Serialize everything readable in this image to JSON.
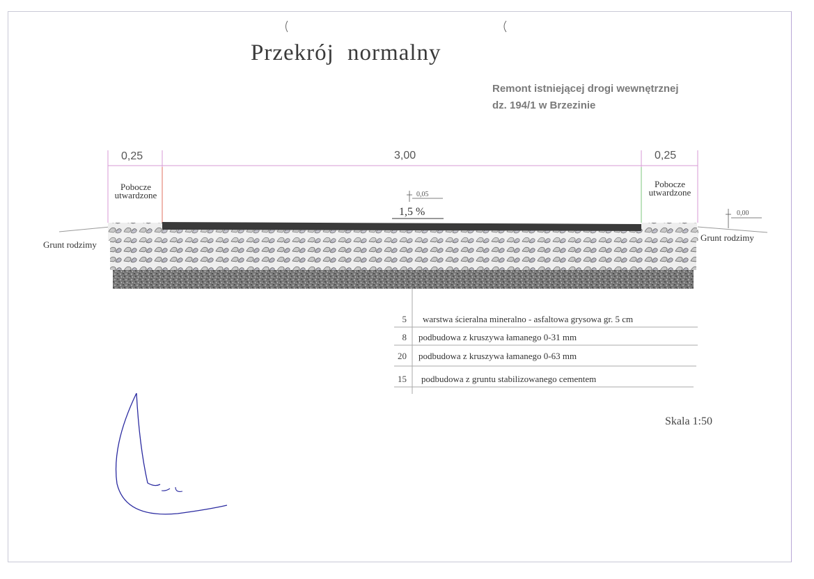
{
  "title": "Przekrój  normalny",
  "project": {
    "line1": "Remont istniejącej drogi wewnętrznej",
    "line2": "dz. 194/1 w Brzezinie"
  },
  "dimensions": {
    "left": "0,25",
    "middle": "3,00",
    "right": "0,25"
  },
  "shoulder": {
    "left": {
      "line1": "Pobocze",
      "line2": "utwardzone"
    },
    "right": {
      "line1": "Pobocze",
      "line2": "utwardzone"
    }
  },
  "ground": {
    "left": "Grunt rodzimy",
    "right": "Grunt rodzimy"
  },
  "levels": {
    "center": "0,05",
    "edge": "0,00"
  },
  "slope": "1,5 %",
  "layers": [
    {
      "thickness": "5",
      "description": "warstwa ścieralna mineralno - asfaltowa grysowa gr. 5 cm"
    },
    {
      "thickness": "8",
      "description": "podbudowa z kruszywa łamanego  0-31 mm"
    },
    {
      "thickness": "20",
      "description": "podbudowa z kruszywa łamanego 0-63 mm"
    },
    {
      "thickness": "15",
      "description": "podbudowa z gruntu stabilizowanego cementem"
    }
  ],
  "scale": "Skala 1:50",
  "colors": {
    "asphalt": "#3a3a3a",
    "aggregate": "#bdbdbd",
    "dimension_line": "#d79ad6",
    "signature": "#2a2aa0"
  }
}
